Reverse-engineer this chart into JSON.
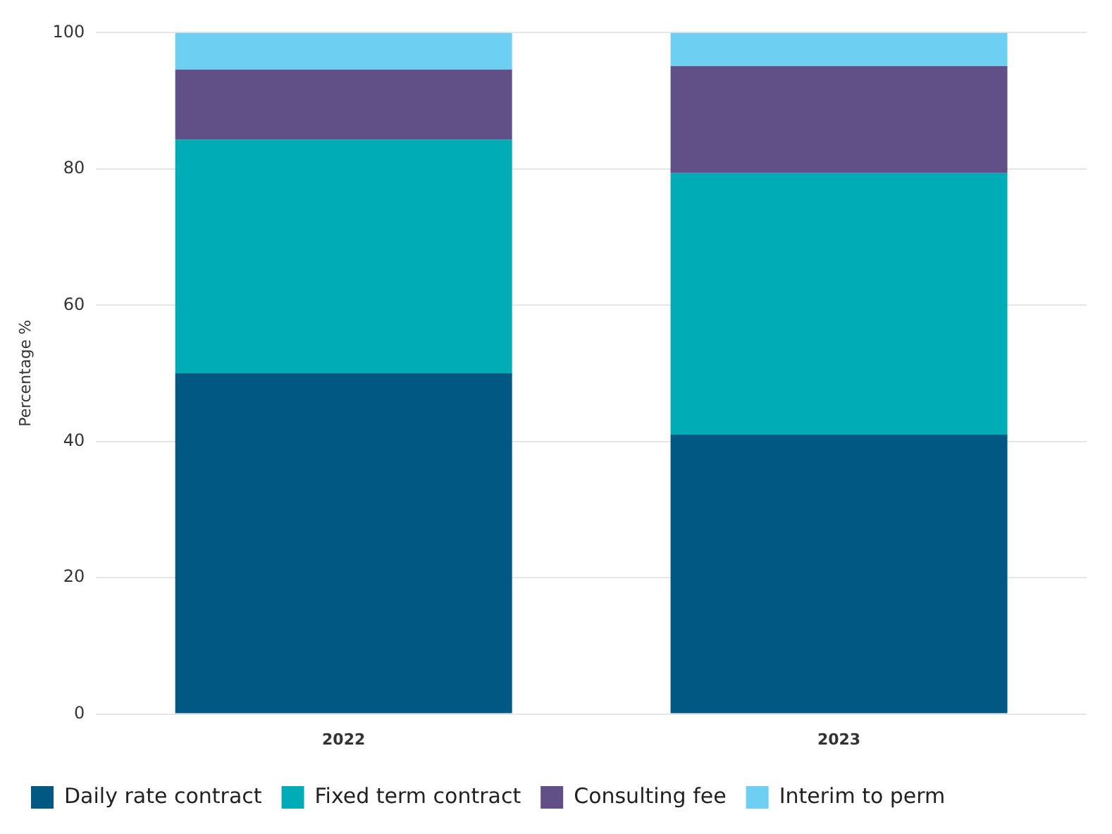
{
  "chart_data": {
    "type": "bar",
    "ylabel": "Percentage %",
    "categories": [
      "2022",
      "2023"
    ],
    "stacked": true,
    "series": [
      {
        "name": "Daily rate contract",
        "color": "#005883",
        "values": [
          50,
          41
        ]
      },
      {
        "name": "Fixed term contract",
        "color": "#00adb7",
        "values": [
          34.3,
          38.4
        ]
      },
      {
        "name": "Consulting fee",
        "color": "#614f87",
        "values": [
          10.3,
          15.7
        ]
      },
      {
        "name": "Interim to perm",
        "color": "#6dcff2",
        "values": [
          5.4,
          4.9
        ]
      }
    ],
    "ylim": [
      0,
      100
    ],
    "yticks": [
      0,
      20,
      40,
      60,
      80,
      100
    ],
    "grid": "y",
    "legend": "bottom"
  }
}
